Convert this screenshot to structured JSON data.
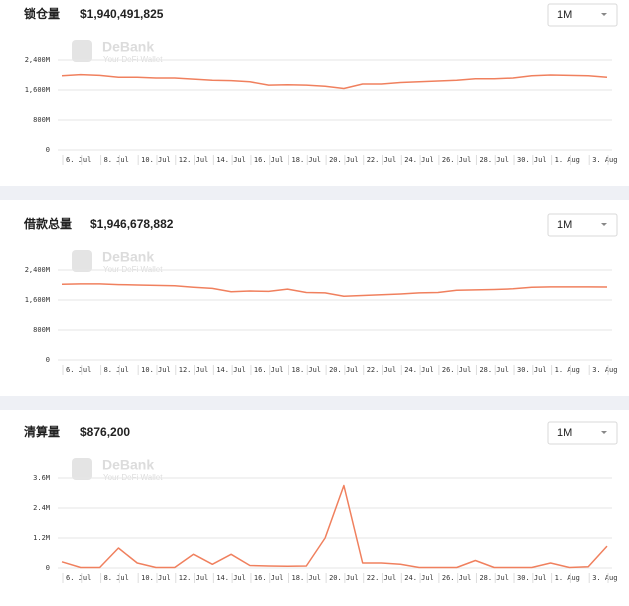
{
  "watermark": {
    "brand": "DeBank",
    "tagline": "Your DeFi Wallet"
  },
  "chart_data": [
    {
      "type": "line",
      "title": "锁仓量",
      "subtitle": "$1,940,491,825",
      "period": "1M",
      "color": "#f0805e",
      "grid": true,
      "categories": [
        "6. Jul",
        null,
        "8. Jul",
        null,
        "10. Jul",
        null,
        "12. Jul",
        null,
        "14. Jul",
        null,
        "16. Jul",
        null,
        "18. Jul",
        null,
        "20. Jul",
        null,
        "22. Jul",
        null,
        "24. Jul",
        null,
        "26. Jul",
        null,
        "28. Jul",
        null,
        "30. Jul",
        null,
        "1. Aug",
        null,
        "3. Aug",
        null
      ],
      "values": [
        1980,
        2010,
        1990,
        1940,
        1940,
        1920,
        1920,
        1890,
        1860,
        1850,
        1820,
        1730,
        1740,
        1730,
        1700,
        1640,
        1760,
        1760,
        1800,
        1820,
        1840,
        1860,
        1900,
        1900,
        1920,
        1980,
        2000,
        1990,
        1980,
        1940
      ],
      "ylim": [
        0,
        2400
      ],
      "yticks": [
        0,
        {
          "value": 800,
          "label": "800M"
        },
        {
          "value": 1600,
          "label": "1,600M"
        },
        {
          "value": 2400,
          "label": "2,400M"
        }
      ]
    },
    {
      "type": "line",
      "title": "借款总量",
      "subtitle": "$1,946,678,882",
      "period": "1M",
      "color": "#f0805e",
      "grid": true,
      "categories": [
        "6. Jul",
        null,
        "8. Jul",
        null,
        "10. Jul",
        null,
        "12. Jul",
        null,
        "14. Jul",
        null,
        "16. Jul",
        null,
        "18. Jul",
        null,
        "20. Jul",
        null,
        "22. Jul",
        null,
        "24. Jul",
        null,
        "26. Jul",
        null,
        "28. Jul",
        null,
        "30. Jul",
        null,
        "1. Aug",
        null,
        "3. Aug",
        null
      ],
      "values": [
        2020,
        2030,
        2030,
        2010,
        2000,
        1990,
        1980,
        1940,
        1910,
        1820,
        1840,
        1830,
        1890,
        1800,
        1790,
        1700,
        1720,
        1740,
        1760,
        1790,
        1800,
        1860,
        1870,
        1880,
        1900,
        1940,
        1950,
        1950,
        1950,
        1947
      ],
      "ylim": [
        0,
        2400
      ],
      "yticks": [
        0,
        {
          "value": 800,
          "label": "800M"
        },
        {
          "value": 1600,
          "label": "1,600M"
        },
        {
          "value": 2400,
          "label": "2,400M"
        }
      ]
    },
    {
      "type": "line",
      "title": "清算量",
      "subtitle": "$876,200",
      "period": "1M",
      "color": "#f0805e",
      "grid": true,
      "categories": [
        "6. Jul",
        null,
        "8. Jul",
        null,
        "10. Jul",
        null,
        "12. Jul",
        null,
        "14. Jul",
        null,
        "16. Jul",
        null,
        "18. Jul",
        null,
        "20. Jul",
        null,
        "22. Jul",
        null,
        "24. Jul",
        null,
        "26. Jul",
        null,
        "28. Jul",
        null,
        "30. Jul",
        null,
        "1. Aug",
        null,
        "3. Aug",
        null
      ],
      "values": [
        0.25,
        0.02,
        0.02,
        0.8,
        0.2,
        0.02,
        0.02,
        0.55,
        0.15,
        0.55,
        0.1,
        0.08,
        0.07,
        0.08,
        1.2,
        3.3,
        0.2,
        0.2,
        0.15,
        0.02,
        0.02,
        0.02,
        0.3,
        0.02,
        0.02,
        0.02,
        0.2,
        0.02,
        0.05,
        0.876
      ],
      "ylim": [
        0,
        3.6
      ],
      "yticks": [
        0,
        {
          "value": 1.2,
          "label": "1.2M"
        },
        {
          "value": 2.4,
          "label": "2.4M"
        },
        {
          "value": 3.6,
          "label": "3.6M"
        }
      ]
    }
  ]
}
